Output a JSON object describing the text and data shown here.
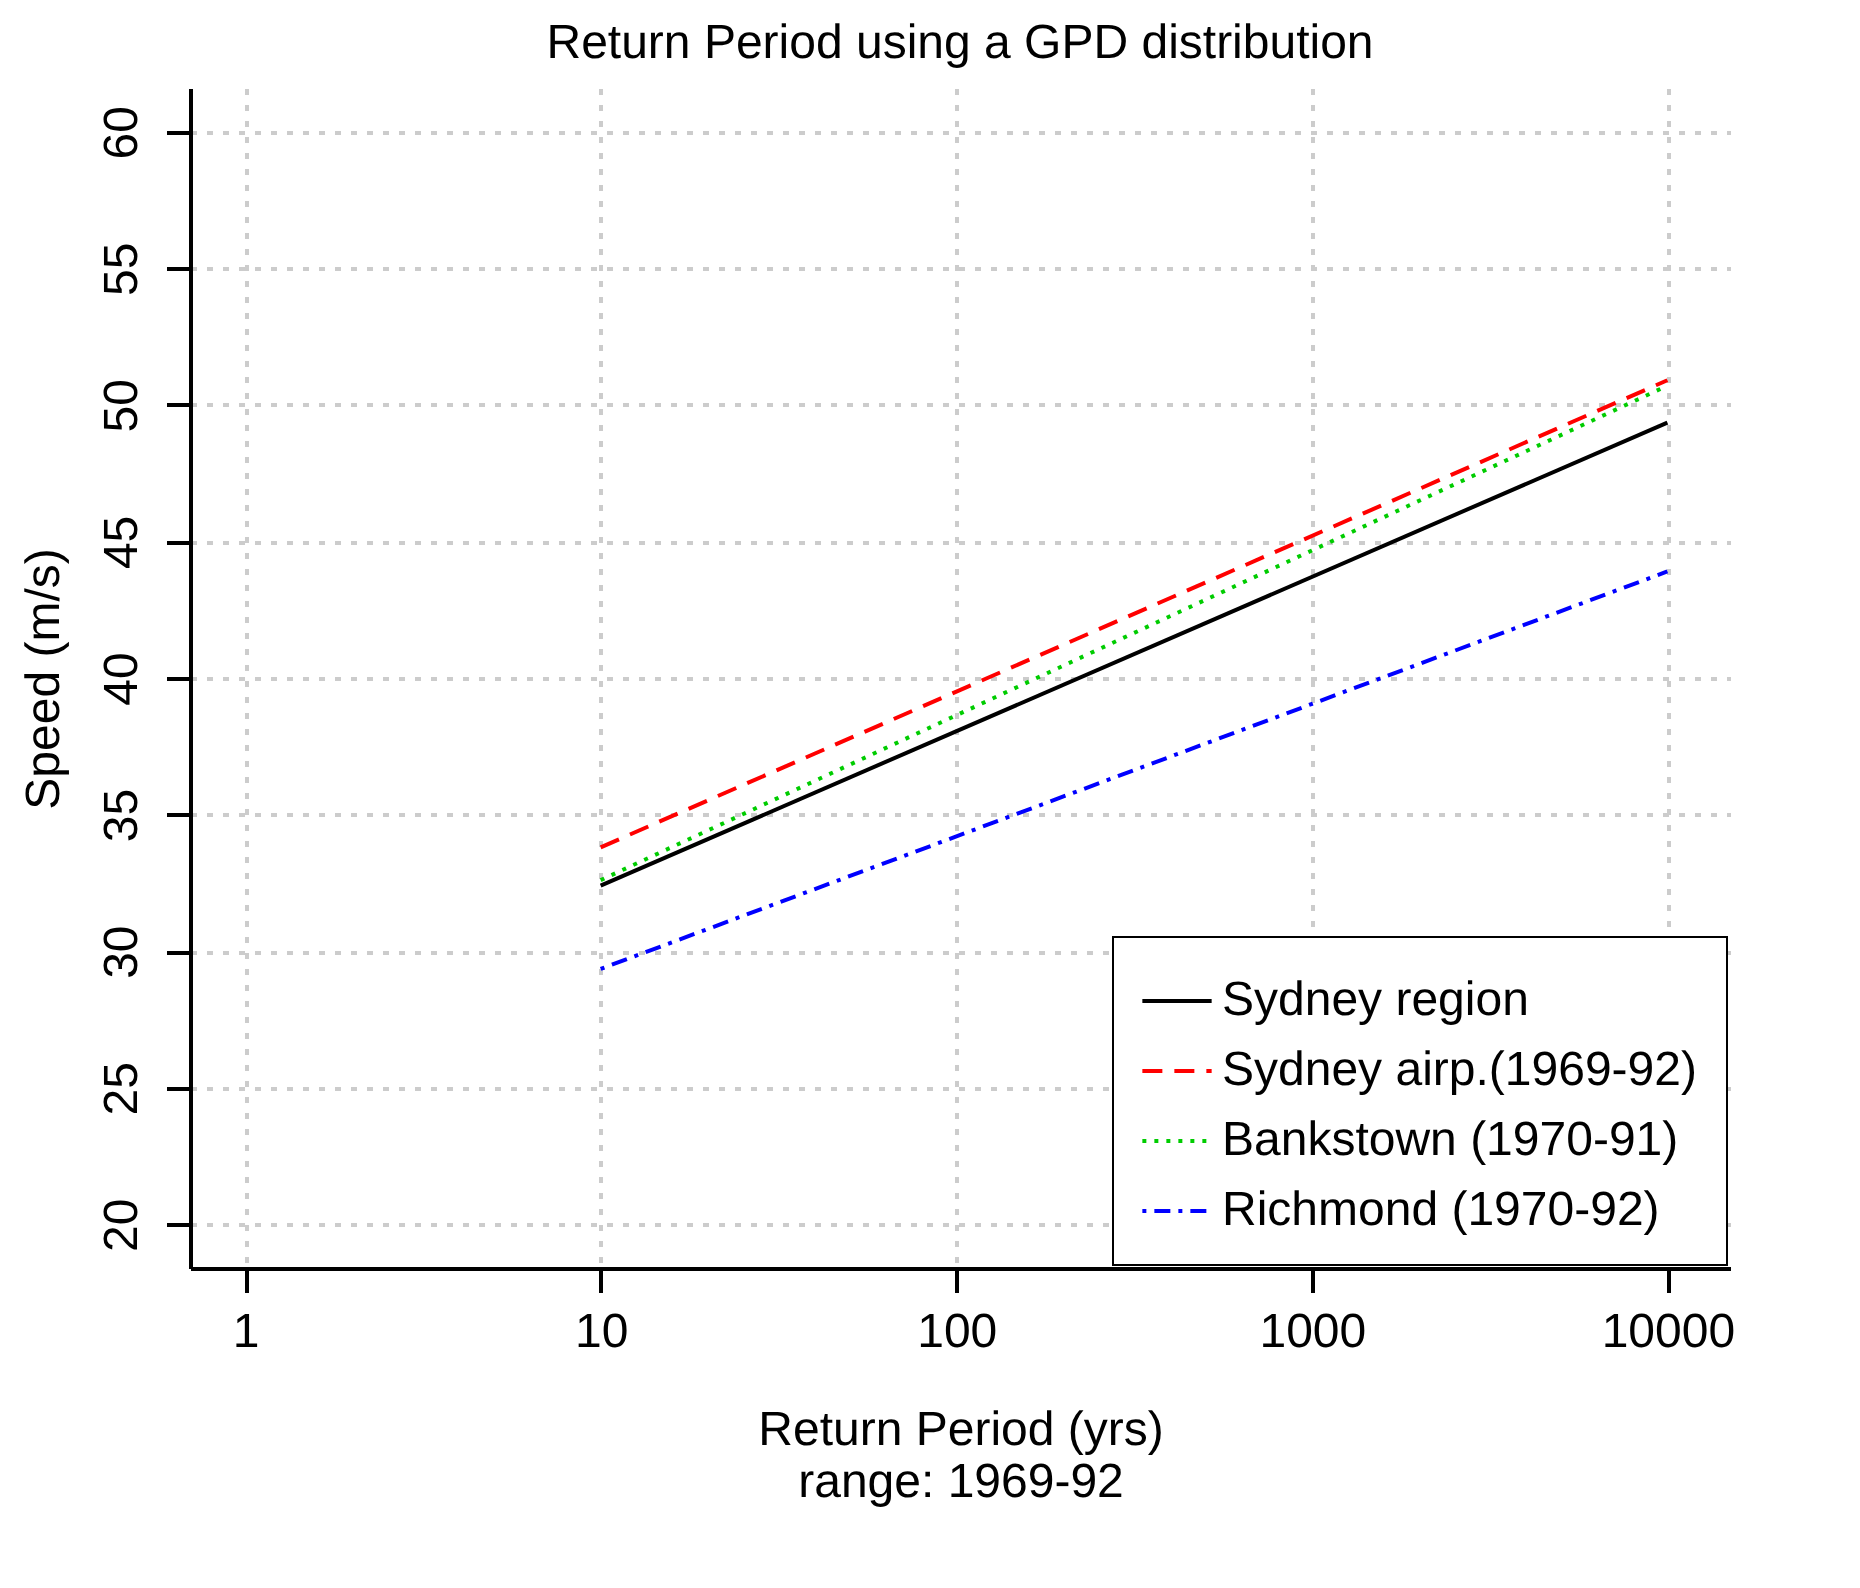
{
  "chart_data": {
    "type": "line",
    "title": "Return Period using a GPD distribution",
    "xlabel": "Return Period (yrs)",
    "ylabel": "Speed (m/s)",
    "annotations": [
      "range: 1969-92"
    ],
    "log": "x",
    "xlim": [
      0.7,
      15000
    ],
    "xticks": [
      1,
      10,
      100,
      1000,
      10000
    ],
    "ylim": [
      18.4,
      61.6
    ],
    "yticks": [
      20,
      25,
      30,
      35,
      40,
      45,
      50,
      55,
      60
    ],
    "grid": true,
    "legend": "bottom right",
    "x": [
      10,
      10000
    ],
    "series": [
      {
        "name": "Sydney region",
        "color": "#000000",
        "line_style": "solid",
        "values": [
          32.4,
          49.35
        ]
      },
      {
        "name": "Sydney airp.(1969-92)",
        "color": "#ff0000",
        "line_style": "dashed",
        "values": [
          33.8,
          50.9
        ]
      },
      {
        "name": "Bankstown (1970-91)",
        "color": "#00cc00",
        "line_style": "dotted",
        "values": [
          32.6,
          50.7
        ]
      },
      {
        "name": "Richmond (1970-92)",
        "color": "#0000ff",
        "line_style": "dashdot",
        "values": [
          29.35,
          43.9
        ]
      }
    ]
  }
}
